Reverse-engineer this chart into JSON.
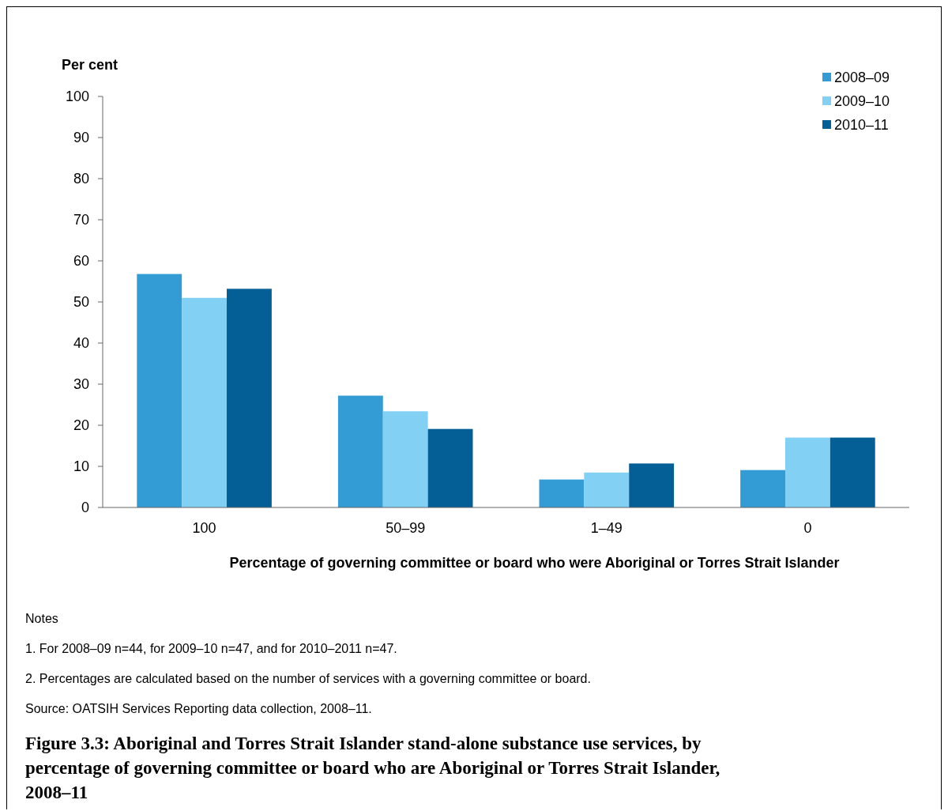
{
  "chart_data": {
    "type": "bar",
    "title": "Figure 3.3: Aboriginal and Torres Strait Islander stand-alone substance use services, by percentage of governing committee or board who are Aboriginal or Torres Strait Islander, 2008–11",
    "xlabel": "Percentage of governing committee or board who were Aboriginal or Torres Strait Islander",
    "ylabel": "Per cent",
    "categories": [
      "100",
      "50–99",
      "1–49",
      "0"
    ],
    "series": [
      {
        "name": "2008–09",
        "color": "#339cd5",
        "values": [
          56.8,
          27.2,
          6.8,
          9.1
        ]
      },
      {
        "name": "2009–10",
        "color": "#83d0f5",
        "values": [
          51.0,
          23.4,
          8.5,
          17.0
        ]
      },
      {
        "name": "2010–11",
        "color": "#035f96",
        "values": [
          53.2,
          19.1,
          10.7,
          17.0
        ]
      }
    ],
    "ylim": [
      0,
      100
    ],
    "yticks": [
      0,
      10,
      20,
      30,
      40,
      50,
      60,
      70,
      80,
      90,
      100
    ],
    "grid": false,
    "legend": "top right",
    "annotations": [
      "Notes",
      "1. For 2008–09 n=44, for 2009–10 n=47, and for 2010–2011 n=47.",
      "2. Percentages are calculated based on the number of services with a governing committee or board.",
      "Source: OATSIH Services Reporting data collection, 2008–11."
    ]
  }
}
